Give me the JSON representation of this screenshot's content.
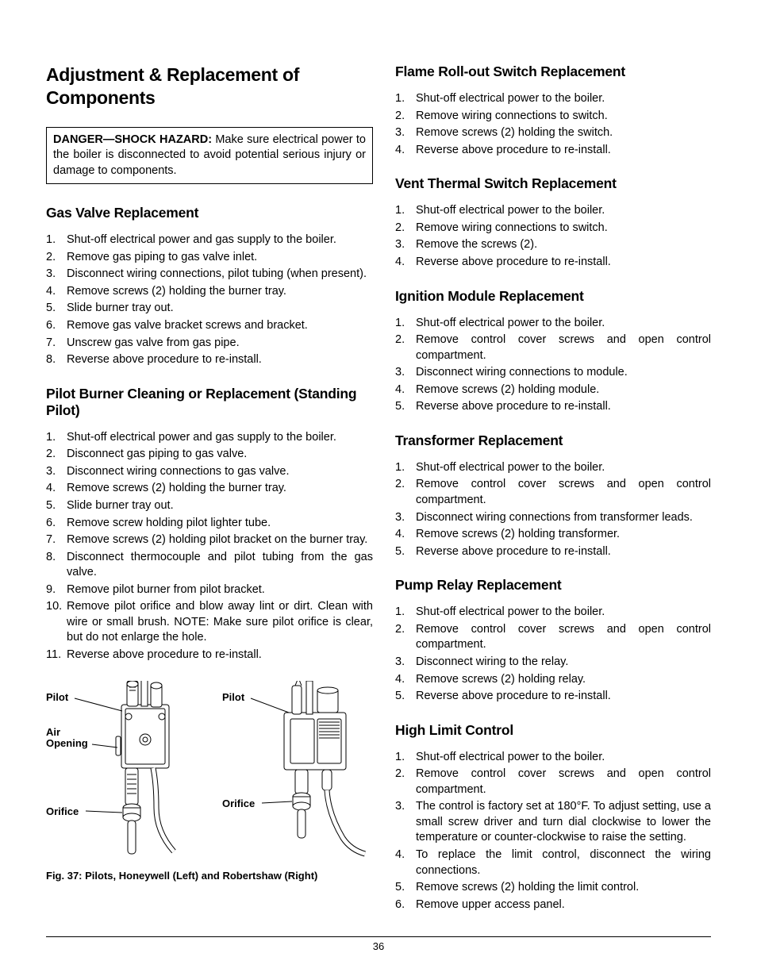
{
  "page_number": "36",
  "h1": "Adjustment & Replacement of Components",
  "danger": {
    "lead": "DANGER—SHOCK HAZARD:",
    "body": " Make sure electrical power to the boiler is disconnected to avoid potential serious injury or damage to components."
  },
  "figure": {
    "caption": "Fig. 37: Pilots, Honeywell (Left) and Robertshaw (Right)",
    "labels": {
      "pilot_l": "Pilot",
      "air_opening": "Air\nOpening",
      "orifice_l": "Orifice",
      "pilot_r": "Pilot",
      "orifice_r": "Orifice"
    },
    "styling": {
      "stroke_color": "#000000",
      "fill_color": "#ffffff",
      "stroke_width": 1,
      "label_font_size": 13,
      "label_font_weight": 900
    }
  },
  "sections": {
    "gas_valve": {
      "title": "Gas Valve Replacement",
      "items": [
        "Shut-off electrical power and gas supply to the boiler.",
        "Remove gas piping to gas valve inlet.",
        "Disconnect wiring connections, pilot tubing (when present).",
        "Remove screws (2) holding the burner tray.",
        "Slide burner tray out.",
        "Remove gas valve bracket screws and bracket.",
        "Unscrew gas valve from gas pipe.",
        "Reverse above procedure to re-install."
      ]
    },
    "pilot_burner": {
      "title": "Pilot Burner Cleaning or Replacement (Standing Pilot)",
      "items": [
        "Shut-off electrical power and gas supply to the boiler.",
        "Disconnect gas piping to gas valve.",
        "Disconnect wiring connections to gas valve.",
        "Remove screws (2) holding the burner tray.",
        "Slide burner tray out.",
        "Remove screw holding pilot lighter tube.",
        "Remove screws (2) holding pilot bracket on the burner tray.",
        "Disconnect thermocouple and pilot tubing from the gas valve.",
        "Remove pilot burner from pilot bracket.",
        "Remove pilot orifice and blow away lint or dirt. Clean with wire or small brush. NOTE: Make sure pilot orifice is clear, but do not enlarge the hole.",
        "Reverse above procedure to re-install."
      ]
    },
    "flame_rollout": {
      "title": "Flame Roll-out Switch Replacement",
      "items": [
        "Shut-off electrical power to the boiler.",
        "Remove wiring connections to switch.",
        "Remove screws (2) holding the switch.",
        "Reverse above procedure to re-install."
      ]
    },
    "vent_thermal": {
      "title": "Vent Thermal Switch Replacement",
      "items": [
        "Shut-off electrical power to the boiler.",
        "Remove wiring connections to switch.",
        "Remove the screws (2).",
        "Reverse above procedure to re-install."
      ]
    },
    "ignition": {
      "title": "Ignition Module Replacement",
      "items": [
        "Shut-off electrical power to the boiler.",
        "Remove control cover screws and open control compartment.",
        "Disconnect wiring connections to module.",
        "Remove screws (2) holding module.",
        "Reverse above procedure to re-install."
      ]
    },
    "transformer": {
      "title": "Transformer Replacement",
      "items": [
        "Shut-off electrical power to the boiler.",
        "Remove control cover screws and open control compartment.",
        "Disconnect wiring connections from transformer leads.",
        "Remove screws (2) holding transformer.",
        "Reverse above procedure to re-install."
      ]
    },
    "pump_relay": {
      "title": "Pump Relay Replacement",
      "items": [
        "Shut-off electrical power to the boiler.",
        "Remove control cover screws and open control compartment.",
        "Disconnect wiring to the relay.",
        "Remove screws (2) holding relay.",
        "Reverse above procedure to re-install."
      ]
    },
    "high_limit": {
      "title": "High Limit Control",
      "items": [
        "Shut-off electrical power to the boiler.",
        "Remove control cover screws and open control compartment.",
        "The control is factory set at 180°F. To adjust setting, use a small screw driver and turn dial clockwise to lower the temperature or counter-clockwise to raise the setting.",
        "To replace the limit control, disconnect the wiring connections.",
        "Remove screws (2) holding the limit control.",
        "Remove upper access panel."
      ]
    }
  }
}
